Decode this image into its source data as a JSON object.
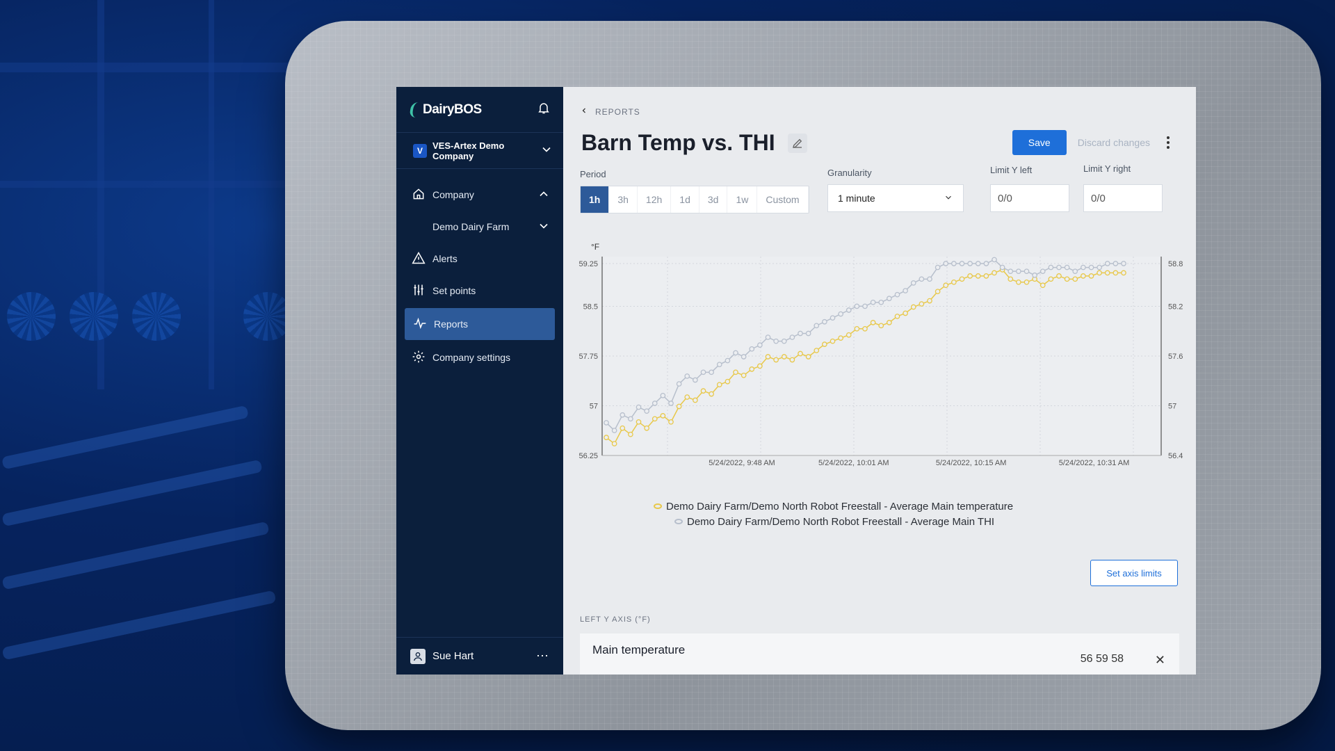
{
  "app": {
    "brand": "DairyBOS",
    "company_initial": "V",
    "company_name": "VES-Artex Demo Company"
  },
  "sidebar": {
    "items": [
      {
        "label": "Company",
        "icon": "home-icon"
      },
      {
        "label": "Demo Dairy Farm",
        "icon": ""
      },
      {
        "label": "Alerts",
        "icon": "alert-triangle-icon"
      },
      {
        "label": "Set points",
        "icon": "sliders-icon"
      },
      {
        "label": "Reports",
        "icon": "pulse-icon"
      },
      {
        "label": "Company settings",
        "icon": "gear-icon"
      }
    ],
    "user_name": "Sue Hart"
  },
  "header": {
    "breadcrumb": "REPORTS",
    "title": "Barn Temp vs. THI",
    "save_label": "Save",
    "discard_label": "Discard changes"
  },
  "controls": {
    "period_label": "Period",
    "periods": [
      "1h",
      "3h",
      "12h",
      "1d",
      "3d",
      "1w",
      "Custom"
    ],
    "active_period": "1h",
    "granularity_label": "Granularity",
    "granularity_value": "1 minute",
    "limit_left_label": "Limit Y left",
    "limit_left_value": "0/0",
    "limit_right_label": "Limit Y right",
    "limit_right_value": "0/0"
  },
  "chart_data": {
    "type": "line",
    "left_unit": "°F",
    "y_left_ticks": [
      "59.25",
      "58.5",
      "57.75",
      "57",
      "56.25"
    ],
    "y_left_lim": [
      56.25,
      59.25
    ],
    "y_right_ticks": [
      "58.8",
      "58.2",
      "57.6",
      "57",
      "56.4"
    ],
    "y_right_lim": [
      56.4,
      58.8
    ],
    "x_ticks": [
      "5/24/2022, 9:48 AM",
      "5/24/2022, 10:01 AM",
      "5/24/2022, 10:15 AM",
      "5/24/2022, 10:31 AM"
    ],
    "grid": true,
    "series": [
      {
        "name": "Demo Dairy Farm/Demo North Robot Freestall - Average Main temperature",
        "color": "#e8c84a",
        "axis": "left",
        "values": [
          56.45,
          56.35,
          56.6,
          56.5,
          56.7,
          56.6,
          56.75,
          56.8,
          56.7,
          56.95,
          57.1,
          57.05,
          57.2,
          57.15,
          57.3,
          57.35,
          57.5,
          57.45,
          57.55,
          57.6,
          57.75,
          57.7,
          57.75,
          57.7,
          57.8,
          57.75,
          57.85,
          57.95,
          58.0,
          58.05,
          58.1,
          58.2,
          58.2,
          58.3,
          58.25,
          58.3,
          58.4,
          58.45,
          58.55,
          58.6,
          58.65,
          58.8,
          58.9,
          58.95,
          59.0,
          59.05,
          59.05,
          59.05,
          59.1,
          59.15,
          59.0,
          58.95,
          58.95,
          59.0,
          58.9,
          59.0,
          59.05,
          59.0,
          59.0,
          59.05,
          59.05,
          59.1,
          59.1,
          59.1,
          59.1
        ]
      },
      {
        "name": "Demo Dairy Farm/Demo North Robot Freestall - Average Main THI",
        "color": "#b7bfcc",
        "axis": "right",
        "values": [
          56.75,
          56.65,
          56.85,
          56.8,
          56.95,
          56.9,
          57.0,
          57.1,
          57.0,
          57.25,
          57.35,
          57.3,
          57.4,
          57.4,
          57.5,
          57.55,
          57.65,
          57.6,
          57.7,
          57.75,
          57.85,
          57.8,
          57.8,
          57.85,
          57.9,
          57.9,
          58.0,
          58.05,
          58.1,
          58.15,
          58.2,
          58.25,
          58.25,
          58.3,
          58.3,
          58.35,
          58.4,
          58.45,
          58.55,
          58.6,
          58.6,
          58.75,
          58.8,
          58.8,
          58.8,
          58.8,
          58.8,
          58.8,
          58.85,
          58.75,
          58.7,
          58.7,
          58.7,
          58.65,
          58.7,
          58.75,
          58.75,
          58.75,
          58.7,
          58.75,
          58.75,
          58.75,
          58.8,
          58.8,
          58.8
        ]
      }
    ]
  },
  "axis_button_label": "Set axis limits",
  "left_axis_section": "LEFT Y AXIS (°F)",
  "series_card": {
    "name": "Main temperature",
    "values": "56 59 58"
  }
}
